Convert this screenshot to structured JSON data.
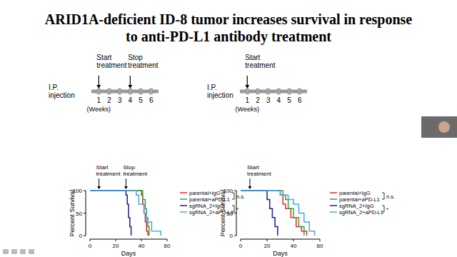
{
  "title": "ARID1A-deficient ID-8 tumor increases survival in response to anti-PD-L1 antibody treatment",
  "timelines": [
    {
      "label": "I.P. injection",
      "weeks": [
        1,
        2,
        3,
        4,
        5,
        6
      ],
      "unit": "(Weeks)",
      "events": [
        {
          "text": "Start treatment",
          "week": 1
        },
        {
          "text": "Stop treatment",
          "week": 4
        }
      ]
    },
    {
      "label": "I.P. injection",
      "weeks": [
        1,
        2,
        3,
        4,
        5,
        6
      ],
      "unit": "(Weeks)",
      "events": [
        {
          "text": "Start treatment",
          "week": 1
        }
      ]
    }
  ],
  "chart_data": [
    {
      "type": "step",
      "xlabel": "Days",
      "ylabel": "Percent Survival",
      "xlim": [
        0,
        60
      ],
      "ylim": [
        0,
        100
      ],
      "xticks": [
        0,
        20,
        40,
        60
      ],
      "yticks": [
        0,
        50,
        100
      ],
      "legend": "right",
      "annotations": [
        {
          "text": "Start treatment",
          "x": 7
        },
        {
          "text": "Stop treatment",
          "x": 28
        }
      ],
      "comparisons": [
        {
          "label": "n.s.",
          "series": [
            0,
            1
          ]
        },
        {
          "label": "*",
          "series": [
            2,
            3
          ]
        }
      ],
      "series": [
        {
          "name": "parental+IgG",
          "color": "#e3262b",
          "x": [
            0,
            40,
            41,
            42,
            43,
            44,
            45
          ],
          "values": [
            100,
            90,
            70,
            50,
            30,
            10,
            0
          ]
        },
        {
          "name": "parental+aPD-L1",
          "color": "#36a339",
          "x": [
            0,
            41,
            43,
            44,
            45,
            46
          ],
          "values": [
            100,
            80,
            60,
            40,
            20,
            0
          ]
        },
        {
          "name": "sgRNA_2+IgG",
          "color": "#1c1c8c",
          "x": [
            0,
            28,
            29,
            30,
            31,
            32
          ],
          "values": [
            100,
            90,
            70,
            40,
            20,
            0
          ]
        },
        {
          "name": "sgRNA_2+aPD-L1",
          "color": "#4aa8e0",
          "x": [
            0,
            36,
            38,
            42,
            44,
            48,
            55
          ],
          "values": [
            100,
            90,
            70,
            50,
            30,
            10,
            0
          ]
        }
      ]
    },
    {
      "type": "step",
      "xlabel": "Days",
      "ylabel": "Percent Survival",
      "xlim": [
        0,
        60
      ],
      "ylim": [
        0,
        100
      ],
      "xticks": [
        0,
        20,
        40,
        60
      ],
      "yticks": [
        0,
        50,
        100
      ],
      "legend": "right",
      "annotations": [
        {
          "text": "Start treatment",
          "x": 7
        }
      ],
      "comparisons": [
        {
          "label": "n.s.",
          "series": [
            0,
            1
          ]
        },
        {
          "label": "*",
          "series": [
            2,
            3
          ]
        }
      ],
      "series": [
        {
          "name": "parental+IgG",
          "color": "#e3262b",
          "x": [
            0,
            30,
            32,
            34,
            38,
            42,
            46,
            50
          ],
          "values": [
            100,
            90,
            70,
            60,
            40,
            20,
            10,
            0
          ]
        },
        {
          "name": "parental+aPD-L1",
          "color": "#36a339",
          "x": [
            0,
            32,
            34,
            36,
            40,
            44,
            48
          ],
          "values": [
            100,
            90,
            80,
            60,
            40,
            20,
            0
          ]
        },
        {
          "name": "sgRNA_2+IgG",
          "color": "#1c1c8c",
          "x": [
            0,
            20,
            22,
            24,
            26,
            28
          ],
          "values": [
            100,
            80,
            60,
            40,
            20,
            0
          ]
        },
        {
          "name": "sgRNA_2+aPD-L1",
          "color": "#4aa8e0",
          "x": [
            0,
            30,
            36,
            40,
            44,
            48,
            52,
            56
          ],
          "values": [
            100,
            90,
            80,
            70,
            50,
            30,
            10,
            0
          ]
        }
      ]
    }
  ]
}
